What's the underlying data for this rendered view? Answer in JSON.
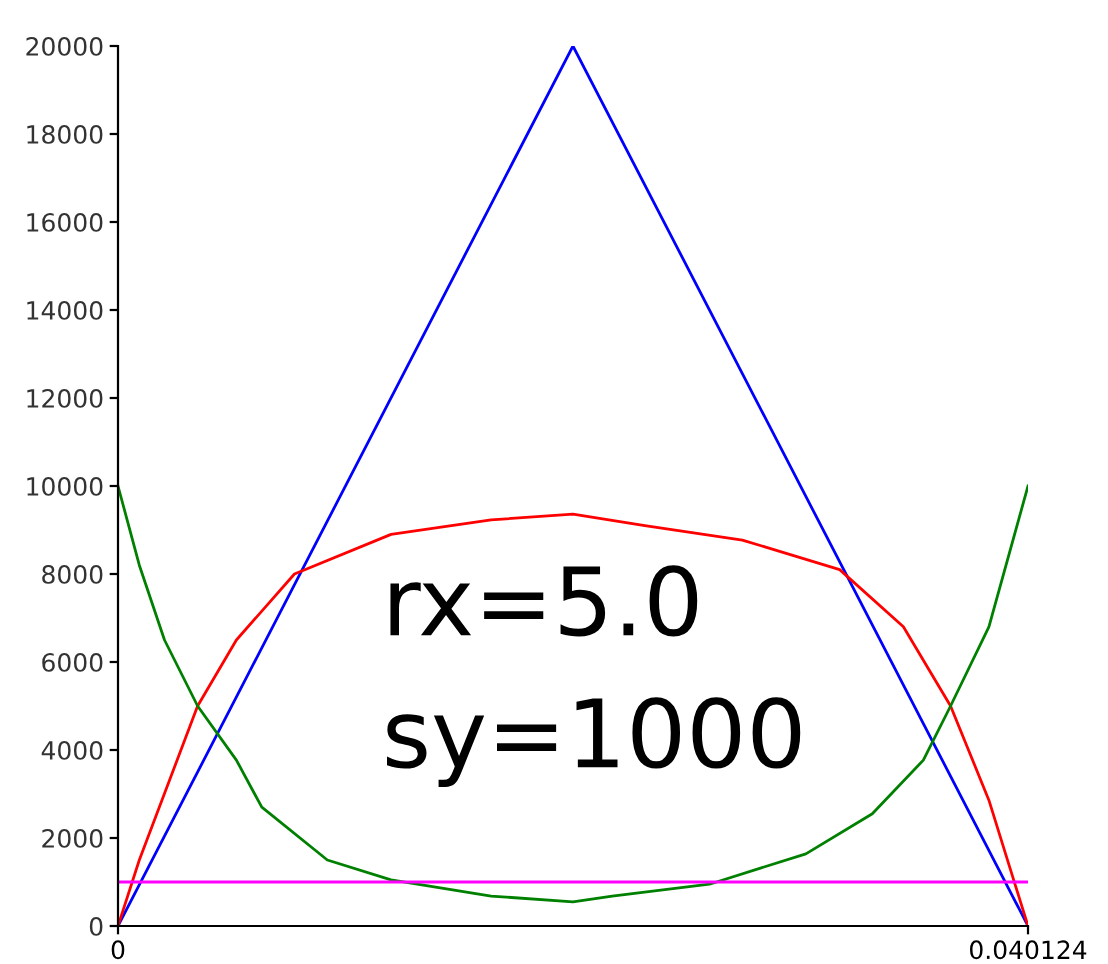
{
  "chart_data": {
    "type": "line",
    "xlim": [
      0,
      0.040124
    ],
    "ylim": [
      0,
      20000
    ],
    "xticks": [
      0,
      0.040124
    ],
    "yticks": [
      0,
      2000,
      4000,
      6000,
      8000,
      10000,
      12000,
      14000,
      16000,
      18000,
      20000
    ],
    "grid": false,
    "legend": false,
    "annotations": [
      "rx=5.0",
      "sy=1000"
    ],
    "series": [
      {
        "color": "#0000ff",
        "x": [
          0,
          0.02006,
          0.040124
        ],
        "values": [
          0,
          20000,
          0
        ]
      },
      {
        "color": "#ff0000",
        "x": [
          0,
          0.00094,
          0.00351,
          0.00522,
          0.00778,
          0.01204,
          0.01645,
          0.02006,
          0.02323,
          0.02753,
          0.03182,
          0.03463,
          0.03671,
          0.0384,
          0.040124
        ],
        "values": [
          0,
          1500,
          5000,
          6500,
          8000,
          8900,
          9230,
          9360,
          9100,
          8770,
          8100,
          6800,
          5000,
          2860,
          0
        ]
      },
      {
        "color": "#008000",
        "x": [
          0,
          0.00094,
          0.00205,
          0.00351,
          0.00522,
          0.00634,
          0.00923,
          0.01204,
          0.01645,
          0.02006,
          0.02179,
          0.02608,
          0.03033,
          0.03326,
          0.03551,
          0.03671,
          0.0384,
          0.040124
        ],
        "values": [
          10000,
          8200,
          6500,
          5000,
          3770,
          2700,
          1500,
          1050,
          680,
          550,
          680,
          950,
          1640,
          2550,
          3770,
          5000,
          6800,
          10000
        ]
      },
      {
        "color": "#ff00ff",
        "x": [
          0,
          0.040124
        ],
        "values": [
          1000,
          1000
        ]
      }
    ]
  }
}
